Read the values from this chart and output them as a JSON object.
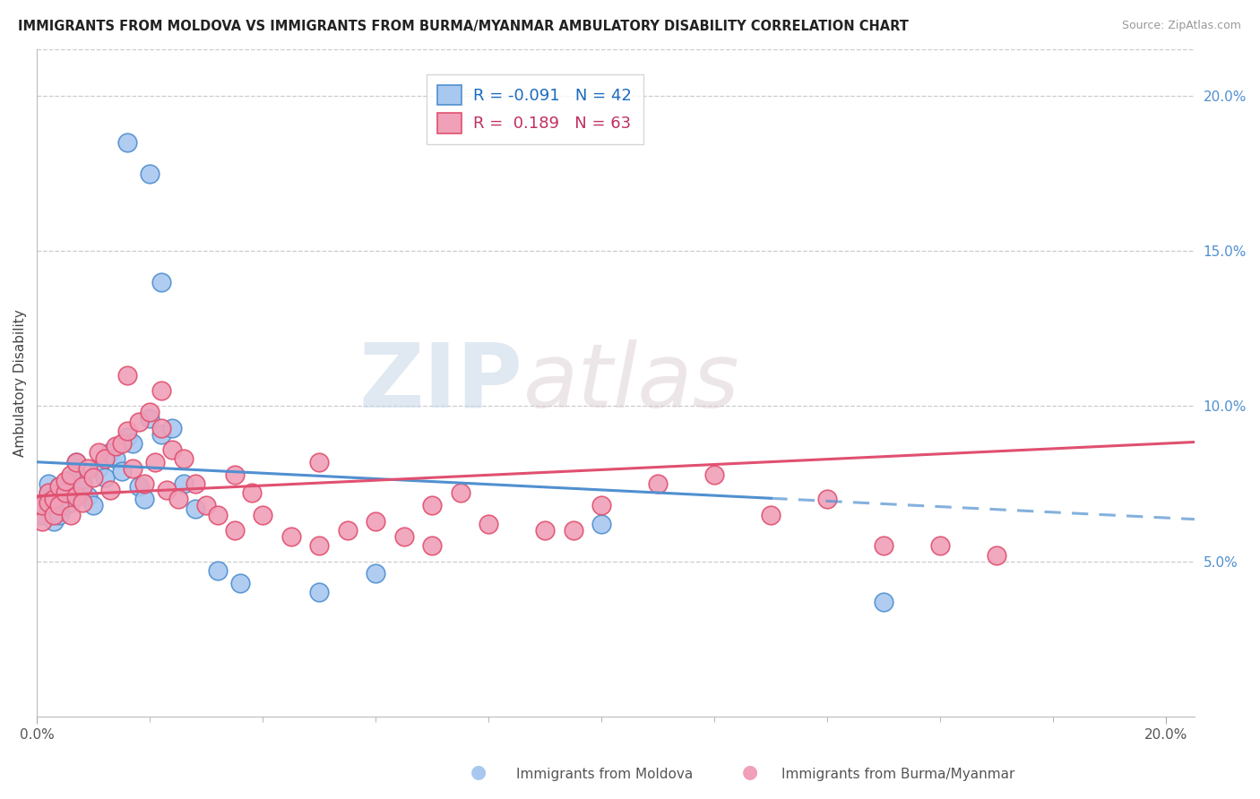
{
  "title": "IMMIGRANTS FROM MOLDOVA VS IMMIGRANTS FROM BURMA/MYANMAR AMBULATORY DISABILITY CORRELATION CHART",
  "source": "Source: ZipAtlas.com",
  "ylabel": "Ambulatory Disability",
  "right_yticks": [
    0.05,
    0.1,
    0.15,
    0.2
  ],
  "right_yticklabels": [
    "5.0%",
    "10.0%",
    "15.0%",
    "20.0%"
  ],
  "xlim": [
    0.0,
    0.205
  ],
  "ylim": [
    0.0,
    0.215
  ],
  "legend_moldova": "Immigrants from Moldova",
  "legend_burma": "Immigrants from Burma/Myanmar",
  "R_moldova": -0.091,
  "N_moldova": 42,
  "R_burma": 0.189,
  "N_burma": 63,
  "color_moldova": "#a8c8f0",
  "color_burma": "#f0a0b8",
  "color_moldova_line": "#5090d0",
  "color_burma_line": "#e05070",
  "watermark_zip": "ZIP",
  "watermark_atlas": "atlas",
  "moldova_x": [
    0.001,
    0.001,
    0.002,
    0.002,
    0.002,
    0.003,
    0.003,
    0.003,
    0.004,
    0.004,
    0.005,
    0.005,
    0.006,
    0.006,
    0.007,
    0.007,
    0.008,
    0.009,
    0.01,
    0.011,
    0.012,
    0.013,
    0.014,
    0.015,
    0.016,
    0.017,
    0.018,
    0.019,
    0.02,
    0.022,
    0.024,
    0.026,
    0.028,
    0.032,
    0.036,
    0.05,
    0.06,
    0.1,
    0.15,
    0.016,
    0.02,
    0.022
  ],
  "moldova_y": [
    0.065,
    0.068,
    0.07,
    0.072,
    0.075,
    0.063,
    0.067,
    0.071,
    0.065,
    0.074,
    0.068,
    0.073,
    0.069,
    0.075,
    0.078,
    0.082,
    0.076,
    0.071,
    0.068,
    0.08,
    0.077,
    0.085,
    0.083,
    0.079,
    0.09,
    0.088,
    0.074,
    0.07,
    0.096,
    0.091,
    0.093,
    0.075,
    0.067,
    0.047,
    0.043,
    0.04,
    0.046,
    0.062,
    0.037,
    0.185,
    0.175,
    0.14
  ],
  "burma_x": [
    0.001,
    0.001,
    0.002,
    0.002,
    0.003,
    0.003,
    0.004,
    0.004,
    0.005,
    0.005,
    0.006,
    0.006,
    0.007,
    0.007,
    0.008,
    0.008,
    0.009,
    0.01,
    0.011,
    0.012,
    0.013,
    0.014,
    0.015,
    0.016,
    0.017,
    0.018,
    0.019,
    0.02,
    0.021,
    0.022,
    0.023,
    0.024,
    0.025,
    0.026,
    0.028,
    0.03,
    0.032,
    0.035,
    0.038,
    0.04,
    0.045,
    0.05,
    0.055,
    0.06,
    0.065,
    0.07,
    0.075,
    0.08,
    0.09,
    0.1,
    0.11,
    0.12,
    0.13,
    0.14,
    0.15,
    0.16,
    0.17,
    0.016,
    0.022,
    0.035,
    0.05,
    0.07,
    0.095
  ],
  "burma_y": [
    0.063,
    0.068,
    0.072,
    0.069,
    0.065,
    0.07,
    0.074,
    0.068,
    0.072,
    0.076,
    0.065,
    0.078,
    0.071,
    0.082,
    0.074,
    0.069,
    0.08,
    0.077,
    0.085,
    0.083,
    0.073,
    0.087,
    0.088,
    0.092,
    0.08,
    0.095,
    0.075,
    0.098,
    0.082,
    0.093,
    0.073,
    0.086,
    0.07,
    0.083,
    0.075,
    0.068,
    0.065,
    0.06,
    0.072,
    0.065,
    0.058,
    0.055,
    0.06,
    0.063,
    0.058,
    0.068,
    0.072,
    0.062,
    0.06,
    0.068,
    0.075,
    0.078,
    0.065,
    0.07,
    0.055,
    0.055,
    0.052,
    0.11,
    0.105,
    0.078,
    0.082,
    0.055,
    0.06
  ]
}
